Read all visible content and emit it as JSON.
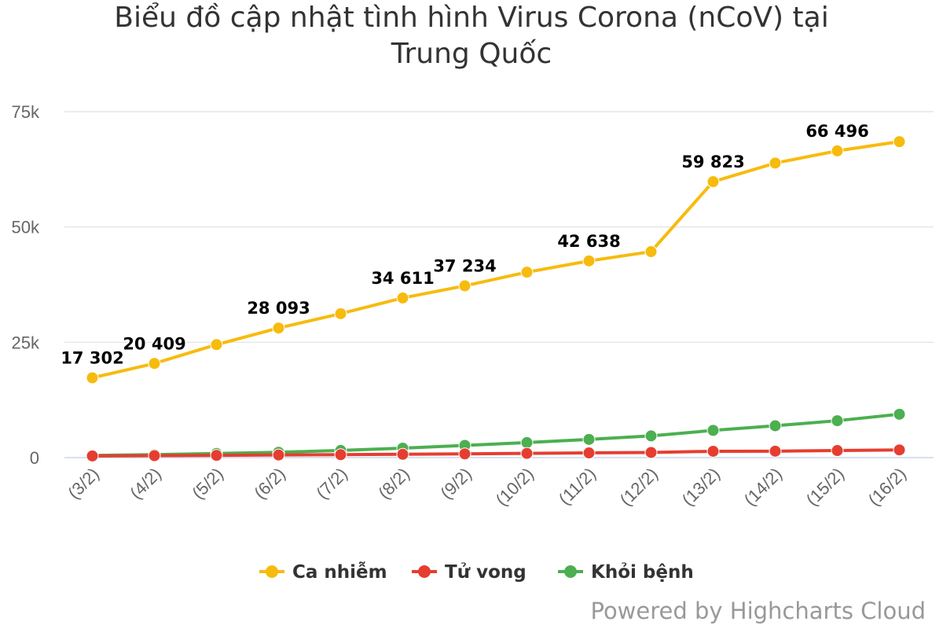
{
  "chart_data": {
    "type": "line",
    "title": "Biểu đồ cập nhật tình hình Virus Corona (nCoV) tại\nTrung Quốc",
    "categories": [
      "(3/2)",
      "(4/2)",
      "(5/2)",
      "(6/2)",
      "(7/2)",
      "(8/2)",
      "(9/2)",
      "(10/2)",
      "(11/2)",
      "(12/2)",
      "(13/2)",
      "(14/2)",
      "(15/2)",
      "(16/2)"
    ],
    "ylim": [
      0,
      75000
    ],
    "yticks": [
      0,
      25000,
      50000,
      75000
    ],
    "ytick_labels": [
      "0",
      "25k",
      "50k",
      "75k"
    ],
    "grid": true,
    "legend_position": "bottom-center",
    "series": [
      {
        "name": "Ca nhiễm",
        "color": "#f7bb0e",
        "values": [
          17302,
          20409,
          24500,
          28093,
          31200,
          34611,
          37234,
          40200,
          42638,
          44650,
          59823,
          63850,
          66496,
          68500
        ],
        "data_labels": [
          "17 302",
          "20 409",
          null,
          "28 093",
          null,
          "34 611",
          "37 234",
          null,
          "42 638",
          null,
          "59 823",
          null,
          "66 496",
          null
        ]
      },
      {
        "name": "Tử vong",
        "color": "#e53e30",
        "values": [
          360,
          425,
          490,
          565,
          635,
          720,
          810,
          910,
          1020,
          1115,
          1370,
          1390,
          1530,
          1670
        ]
      },
      {
        "name": "Khỏi bệnh",
        "color": "#4caf50",
        "values": [
          480,
          630,
          890,
          1150,
          1550,
          2050,
          2650,
          3250,
          3950,
          4700,
          5900,
          6900,
          8000,
          9400
        ]
      }
    ],
    "credits": "Powered by Highcharts Cloud"
  }
}
